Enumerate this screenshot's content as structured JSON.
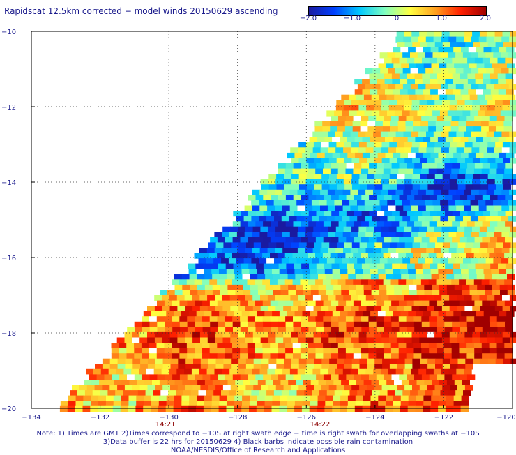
{
  "title": "Rapidscat 12.5km corrected − model winds 20150629 ascending",
  "colorbar": {
    "labels": [
      "−2.0",
      "−1.0",
      "0",
      "1.0",
      "2.0"
    ],
    "min": -2.0,
    "max": 2.0,
    "colors": [
      "#1a1aa0",
      "#0040ff",
      "#00c8ff",
      "#80ffc0",
      "#ffff40",
      "#ffa020",
      "#ff2000",
      "#a00000"
    ]
  },
  "axes": {
    "x_ticks": [
      "−134",
      "−132",
      "−130",
      "−128",
      "−126",
      "−124",
      "−122",
      "−120"
    ],
    "y_ticks": [
      "−10",
      "−12",
      "−14",
      "−16",
      "−18",
      "−20"
    ],
    "x_range": [
      -134,
      -120
    ],
    "y_range": [
      -20,
      -10
    ],
    "grid": true
  },
  "time_labels": [
    {
      "text": "14:21",
      "lon": -130.1
    },
    {
      "text": "14:22",
      "lon": -125.6
    }
  ],
  "swath_edges": [
    {
      "lat": -10,
      "left_lon": -123.2
    },
    {
      "lat": -20,
      "left_lon": -133.3
    }
  ],
  "notes": [
    "Note: 1) Times are GMT 2)Times correspond to −10S at right swath edge − time is right swath for overlapping swaths at −10S",
    "3)Data buffer is 22 hrs for 20150629 4) Black barbs indicate possible rain contamination",
    "NOAA/NESDIS/Office of Research and Applications"
  ]
}
